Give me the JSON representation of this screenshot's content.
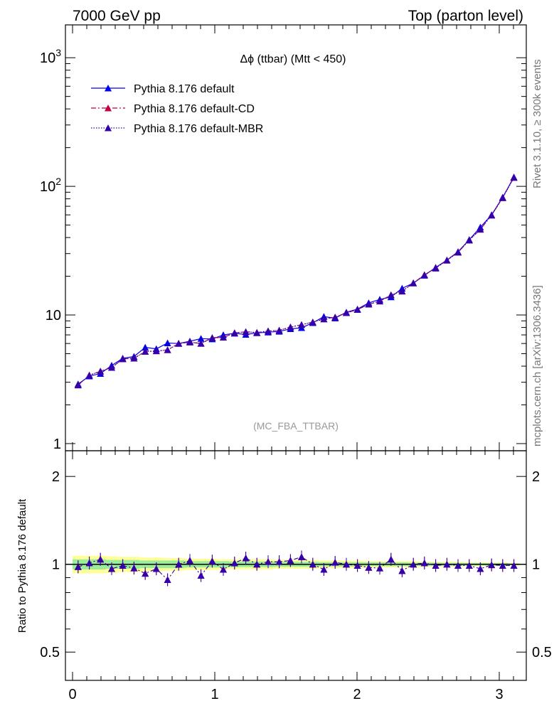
{
  "header": {
    "left": "7000 GeV pp",
    "right": "Top (parton level)"
  },
  "side_labels": {
    "rivet": "Rivet 3.1.10, ≥ 300k events",
    "mcplots": "mcplots.cern.ch [arXiv:1306.3436]"
  },
  "chart_data": [
    {
      "type": "line",
      "panel": "main",
      "title": "Δϕ (ttbar) (Mtt < 450)",
      "annotation": "(MC_FBA_TTBAR)",
      "yscale": "log",
      "ylim": [
        0.88,
        1800
      ],
      "xlim": [
        -0.05,
        3.19
      ],
      "yticklabels": [
        "1",
        "10",
        "10^2",
        "10^3"
      ],
      "legend_position": "top-left",
      "x": [
        0.039,
        0.118,
        0.196,
        0.275,
        0.353,
        0.432,
        0.511,
        0.589,
        0.668,
        0.746,
        0.825,
        0.903,
        0.982,
        1.06,
        1.139,
        1.218,
        1.296,
        1.375,
        1.453,
        1.532,
        1.61,
        1.689,
        1.767,
        1.846,
        1.925,
        2.003,
        2.082,
        2.16,
        2.239,
        2.317,
        2.396,
        2.474,
        2.553,
        2.632,
        2.71,
        2.789,
        2.867,
        2.946,
        3.024,
        3.103
      ],
      "series": [
        {
          "name": "Pythia 8.176 default",
          "color": "#0000ee",
          "linestyle": "solid",
          "values": [
            2.9,
            3.35,
            3.5,
            4.05,
            4.6,
            4.75,
            5.6,
            5.45,
            6.05,
            6.0,
            6.25,
            6.55,
            6.5,
            7.0,
            7.2,
            7.05,
            7.25,
            7.35,
            7.45,
            7.8,
            7.95,
            8.7,
            9.7,
            9.45,
            10.5,
            11.1,
            12.4,
            13.2,
            13.8,
            16.1,
            17.7,
            20.3,
            23.4,
            26.7,
            31.0,
            38.5,
            48.1,
            60.0,
            82.2,
            118.0
          ]
        },
        {
          "name": "Pythia 8.176 default-CD",
          "color": "#c0003c",
          "linestyle": "dashdot",
          "values": [
            2.85,
            3.4,
            3.65,
            3.9,
            4.55,
            4.6,
            5.2,
            5.25,
            5.35,
            6.0,
            6.15,
            6.0,
            6.65,
            6.7,
            7.25,
            7.4,
            7.3,
            7.5,
            7.6,
            8.05,
            8.4,
            8.8,
            9.3,
            9.6,
            10.4,
            11.0,
            12.1,
            12.8,
            14.3,
            15.3,
            17.7,
            20.5,
            23.1,
            26.6,
            30.7,
            38.1,
            46.3,
            59.6,
            81.4,
            117.0
          ]
        },
        {
          "name": "Pythia 8.176 default-MBR",
          "color": "#3300aa",
          "linestyle": "dotted",
          "values": [
            2.85,
            3.4,
            3.65,
            3.9,
            4.55,
            4.6,
            5.2,
            5.25,
            5.35,
            6.0,
            6.15,
            6.0,
            6.65,
            6.7,
            7.25,
            7.4,
            7.3,
            7.5,
            7.6,
            8.05,
            8.4,
            8.8,
            9.3,
            9.6,
            10.4,
            11.0,
            12.1,
            12.8,
            14.3,
            15.3,
            17.7,
            20.5,
            23.1,
            26.6,
            30.7,
            38.1,
            46.3,
            59.6,
            81.4,
            117.0
          ]
        }
      ]
    },
    {
      "type": "line",
      "panel": "ratio",
      "ylabel": "Ratio to Pythia 8.176 default",
      "yscale": "log",
      "ylim": [
        0.4,
        2.45
      ],
      "xlim": [
        -0.05,
        3.19
      ],
      "yticklabels": [
        "0.5",
        "1",
        "2"
      ],
      "xticklabels": [
        "0",
        "1",
        "2",
        "3"
      ],
      "reference_line": 1.0,
      "band_outer": [
        0.93,
        0.93,
        0.93,
        0.935,
        0.94,
        0.94,
        0.945,
        0.945,
        0.95,
        0.95,
        0.955,
        0.955,
        0.955,
        0.96,
        0.96,
        0.96,
        0.96,
        0.96,
        0.965,
        0.965,
        0.965,
        0.965,
        0.97,
        0.97,
        0.97,
        0.97,
        0.975,
        0.975,
        0.975,
        0.975,
        0.975,
        0.98,
        0.98,
        0.98,
        0.98,
        0.985,
        0.985,
        0.985,
        0.985,
        0.99
      ],
      "band_inner": [
        0.96,
        0.96,
        0.96,
        0.965,
        0.965,
        0.965,
        0.97,
        0.97,
        0.97,
        0.97,
        0.975,
        0.975,
        0.975,
        0.975,
        0.978,
        0.978,
        0.978,
        0.978,
        0.98,
        0.98,
        0.98,
        0.98,
        0.983,
        0.983,
        0.983,
        0.983,
        0.985,
        0.985,
        0.985,
        0.985,
        0.987,
        0.987,
        0.987,
        0.988,
        0.988,
        0.99,
        0.99,
        0.99,
        0.99,
        0.993
      ],
      "series": [
        {
          "name": "Pythia 8.176 default-CD",
          "color": "#c0003c",
          "values": [
            0.98,
            1.01,
            1.04,
            0.965,
            0.99,
            0.97,
            0.93,
            0.965,
            0.885,
            1.0,
            1.03,
            0.915,
            1.025,
            0.96,
            1.01,
            1.05,
            1.0,
            1.02,
            1.02,
            1.03,
            1.06,
            1.0,
            0.96,
            1.015,
            1.0,
            0.99,
            0.975,
            0.97,
            1.04,
            0.95,
            1.0,
            1.01,
            0.99,
            1.0,
            0.99,
            0.99,
            0.965,
            0.995,
            0.99,
            0.99
          ]
        },
        {
          "name": "Pythia 8.176 default-MBR",
          "color": "#3300aa",
          "values": [
            0.98,
            1.01,
            1.04,
            0.965,
            0.99,
            0.97,
            0.93,
            0.965,
            0.885,
            1.0,
            1.03,
            0.915,
            1.025,
            0.96,
            1.01,
            1.05,
            1.0,
            1.02,
            1.02,
            1.03,
            1.06,
            1.0,
            0.96,
            1.015,
            1.0,
            0.99,
            0.975,
            0.97,
            1.04,
            0.95,
            1.0,
            1.01,
            0.99,
            1.0,
            0.99,
            0.99,
            0.965,
            0.995,
            0.99,
            0.99
          ]
        }
      ]
    }
  ]
}
